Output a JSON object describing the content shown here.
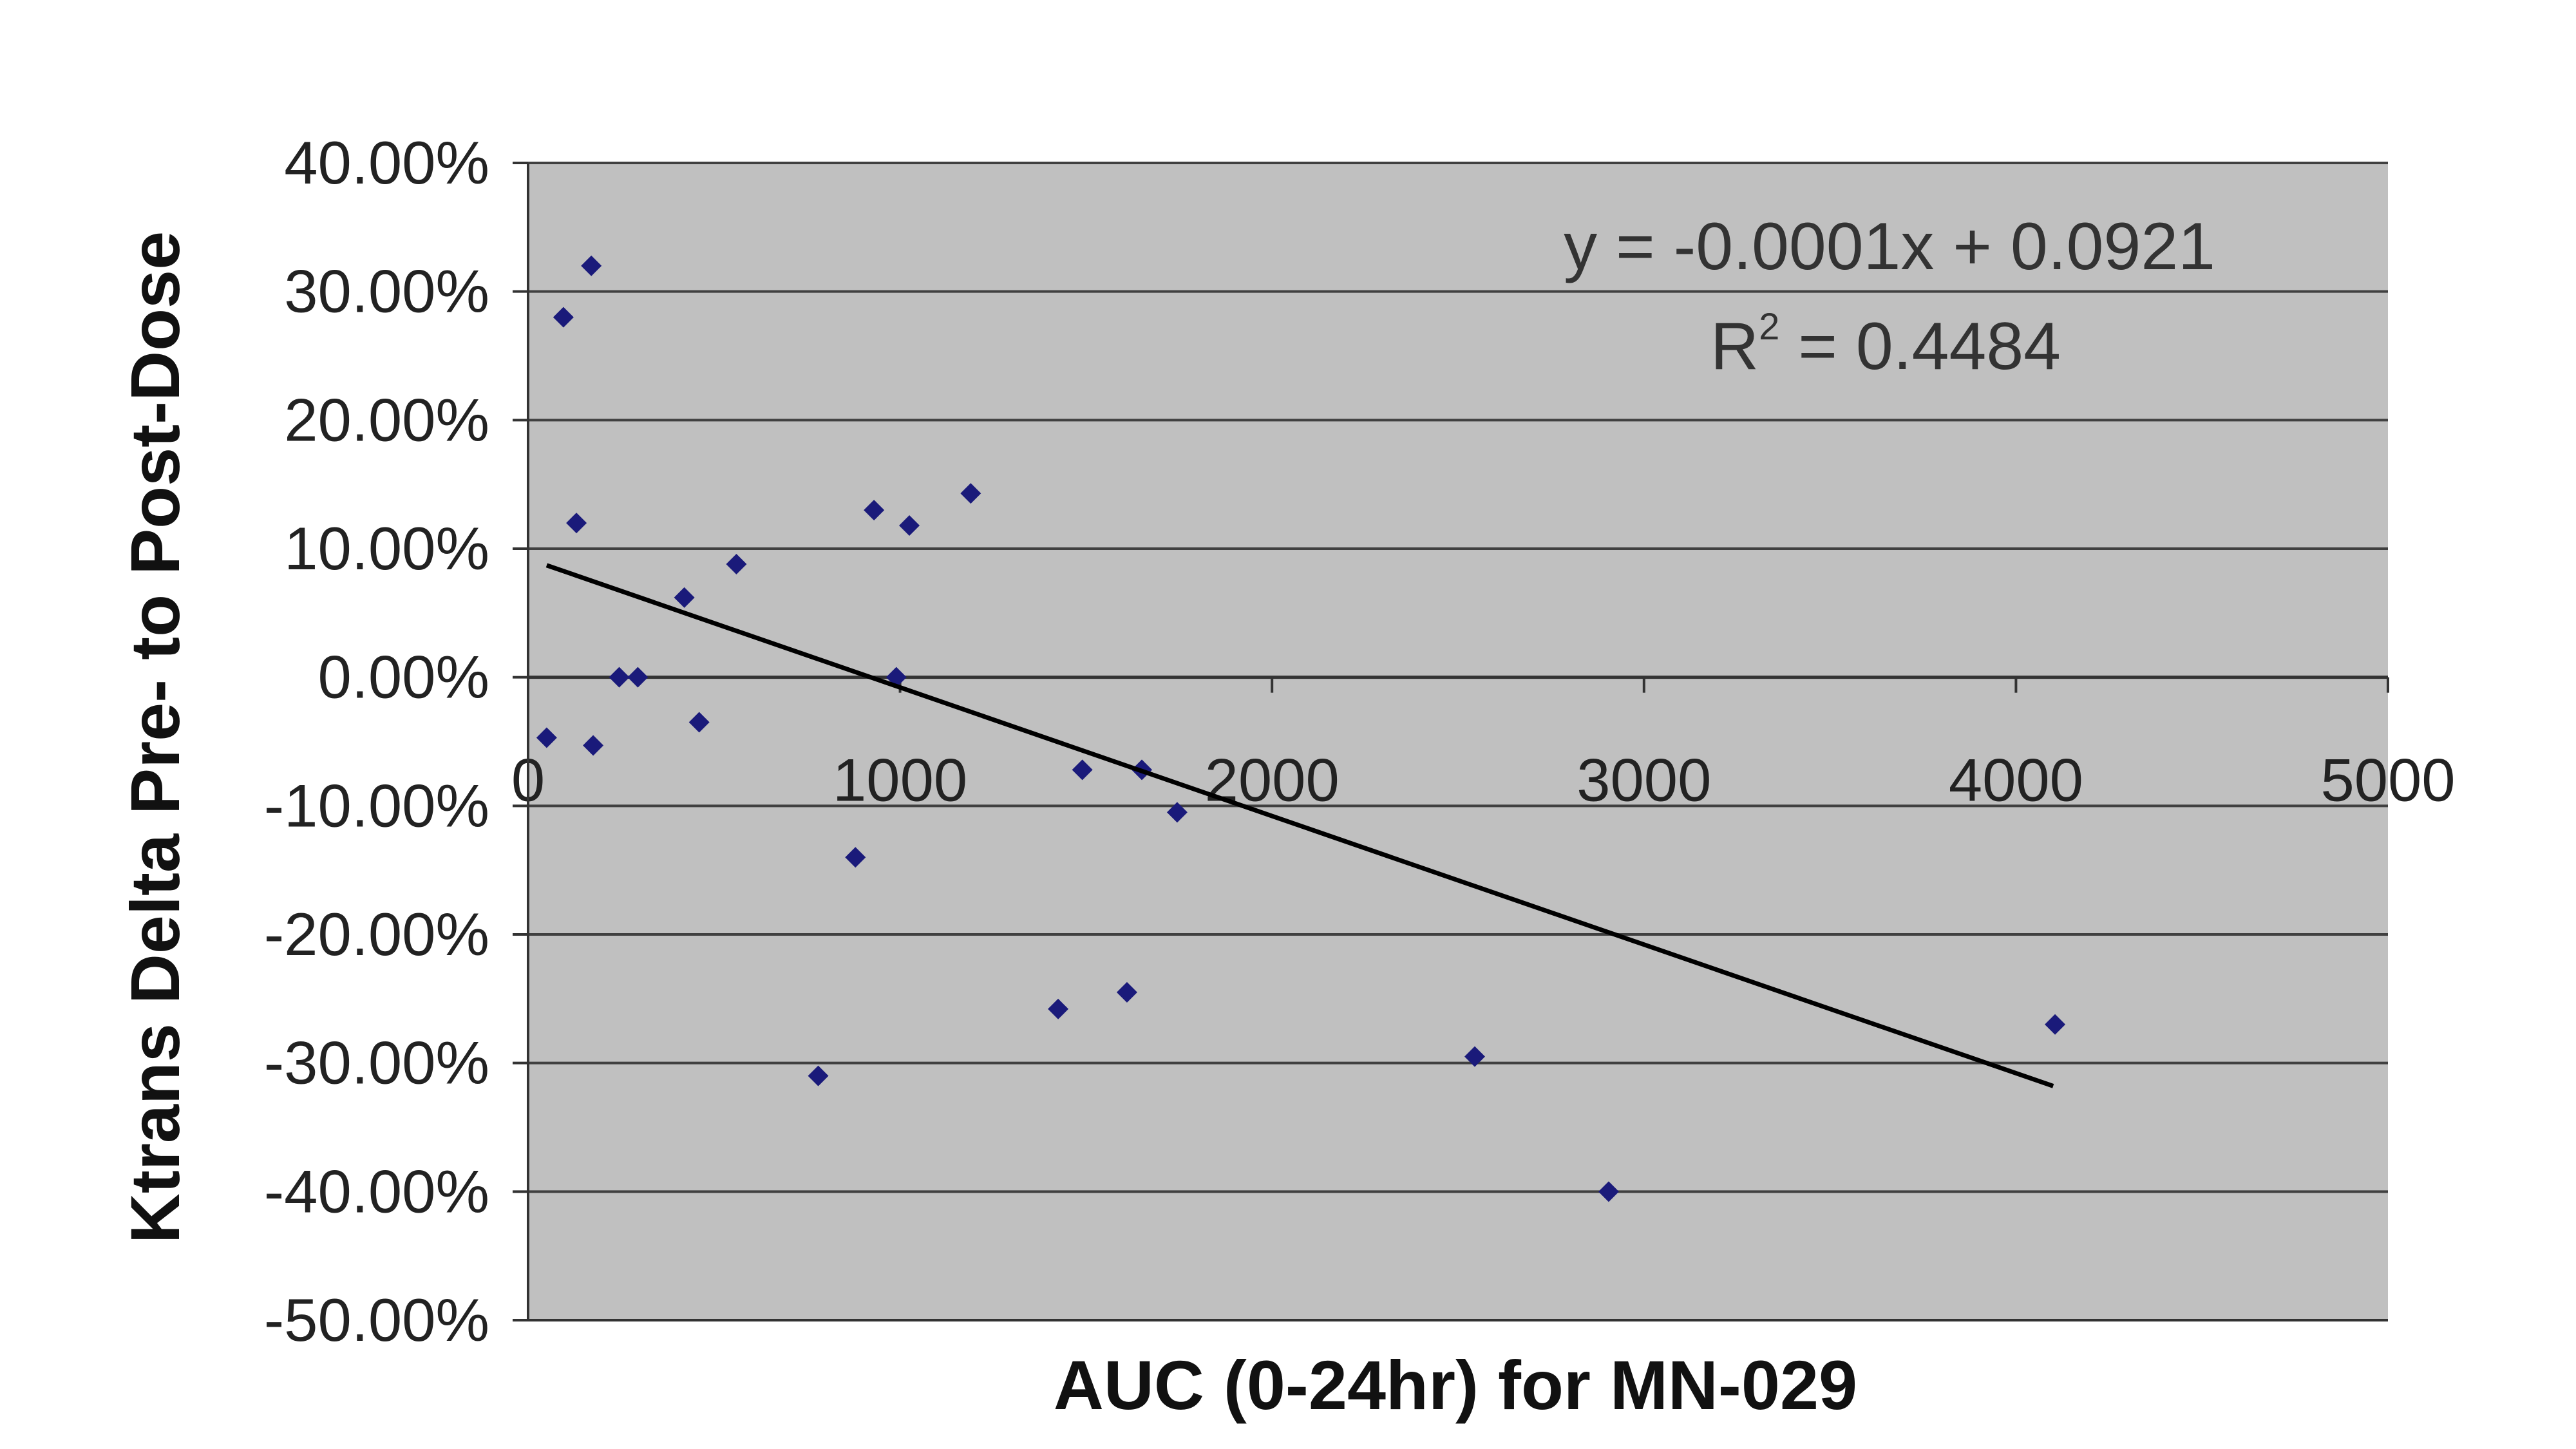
{
  "chart_data": {
    "type": "scatter",
    "title": "",
    "xlabel": "AUC (0-24hr) for MN-029",
    "ylabel": "Ktrans Delta Pre- to Post-Dose",
    "xlim": [
      0,
      5000
    ],
    "ylim": [
      -0.5,
      0.4
    ],
    "x_ticks": [
      0,
      1000,
      2000,
      3000,
      4000,
      5000
    ],
    "x_tick_labels": [
      "0",
      "1000",
      "2000",
      "3000",
      "4000",
      "5000"
    ],
    "y_ticks": [
      0.4,
      0.3,
      0.2,
      0.1,
      0.0,
      -0.1,
      -0.2,
      -0.3,
      -0.4,
      -0.5
    ],
    "y_tick_labels": [
      "40.00%",
      "30.00%",
      "20.00%",
      "10.00%",
      "0.00%",
      "-10.00%",
      "-20.00%",
      "-30.00%",
      "-40.00%",
      "-50.00%"
    ],
    "grid": true,
    "colors": {
      "plot_background": "#c0c0c0",
      "points": "#1a1a7a",
      "trendline": "#000000",
      "gridlines": "#404040"
    },
    "series": [
      {
        "points": [
          {
            "x": 50,
            "y": -0.047
          },
          {
            "x": 95,
            "y": 0.28
          },
          {
            "x": 130,
            "y": 0.12
          },
          {
            "x": 170,
            "y": 0.32
          },
          {
            "x": 175,
            "y": -0.053
          },
          {
            "x": 245,
            "y": 0.0
          },
          {
            "x": 295,
            "y": 0.0
          },
          {
            "x": 420,
            "y": 0.062
          },
          {
            "x": 460,
            "y": -0.035
          },
          {
            "x": 560,
            "y": 0.088
          },
          {
            "x": 780,
            "y": -0.31
          },
          {
            "x": 880,
            "y": -0.14
          },
          {
            "x": 930,
            "y": 0.13
          },
          {
            "x": 990,
            "y": 0.0
          },
          {
            "x": 1025,
            "y": 0.118
          },
          {
            "x": 1190,
            "y": 0.143
          },
          {
            "x": 1425,
            "y": -0.258
          },
          {
            "x": 1490,
            "y": -0.072
          },
          {
            "x": 1610,
            "y": -0.245
          },
          {
            "x": 1650,
            "y": -0.072
          },
          {
            "x": 1745,
            "y": -0.105
          },
          {
            "x": 2545,
            "y": -0.295
          },
          {
            "x": 2905,
            "y": -0.4
          },
          {
            "x": 4105,
            "y": -0.27
          }
        ]
      }
    ],
    "trendline": {
      "equation": "y = -0.0001x + 0.0921",
      "r_squared_label": "R",
      "r_squared_superscript": "2",
      "r_squared_value": " = 0.4484",
      "slope": -0.0001,
      "intercept": 0.0921,
      "x_range": [
        50,
        4100
      ]
    }
  }
}
